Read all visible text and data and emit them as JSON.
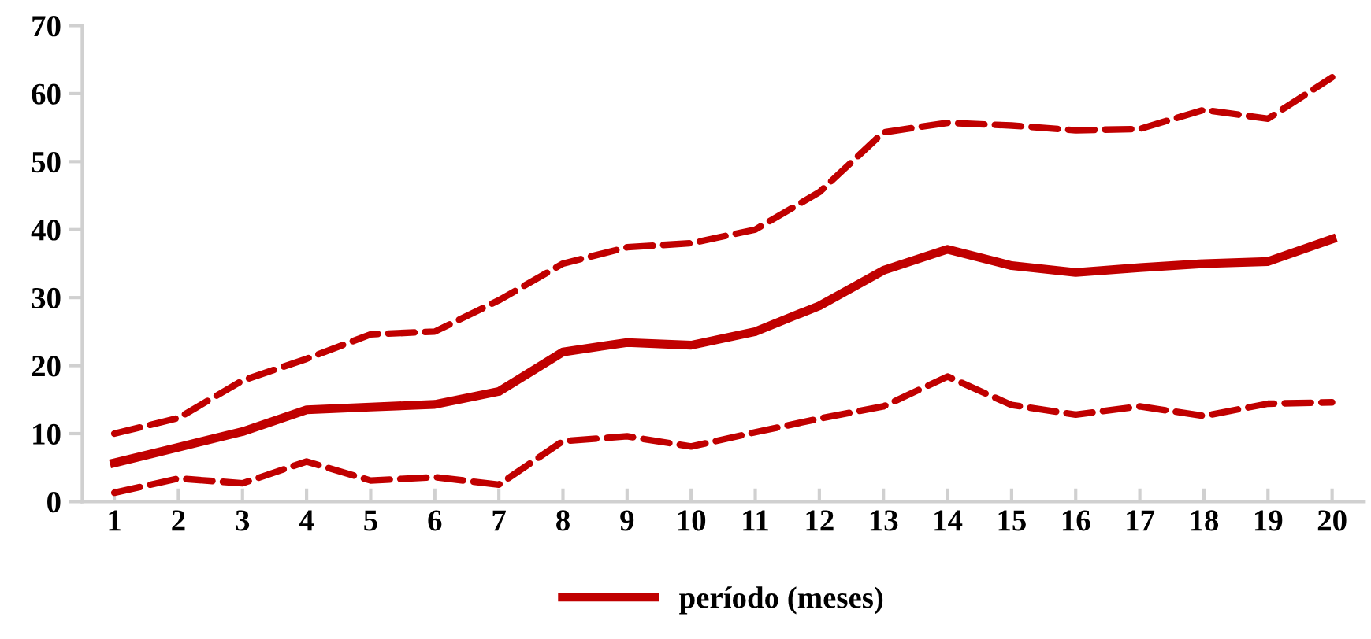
{
  "chart_data": {
    "type": "line",
    "categories": [
      "1",
      "2",
      "3",
      "4",
      "5",
      "6",
      "7",
      "8",
      "9",
      "10",
      "11",
      "12",
      "13",
      "14",
      "15",
      "16",
      "17",
      "18",
      "19",
      "20"
    ],
    "ylim": [
      0,
      70
    ],
    "yticks": [
      0,
      10,
      20,
      30,
      40,
      50,
      60,
      70
    ],
    "grid": false,
    "legend": "bottom",
    "marker": "none",
    "series": [
      {
        "name": "período (meses)",
        "color": "#c00000",
        "line_style": "solid",
        "values": [
          5.7,
          8,
          10.3,
          13.5,
          13.9,
          14.3,
          16.2,
          22,
          23.4,
          23,
          25,
          28.8,
          34,
          37.1,
          34.7,
          33.7,
          34.4,
          35,
          35.3,
          38.6
        ]
      },
      {
        "color": "#c00000",
        "line_style": "dashed",
        "values": [
          10,
          12.3,
          17.8,
          21,
          24.6,
          25,
          29.6,
          35,
          37.4,
          38,
          40,
          45.5,
          54.3,
          55.7,
          55.3,
          54.6,
          54.8,
          57.6,
          56.3,
          62.4
        ]
      },
      {
        "color": "#c00000",
        "line_style": "dashed",
        "values": [
          1.3,
          3.4,
          2.7,
          5.9,
          3.1,
          3.6,
          2.5,
          8.9,
          9.6,
          8.1,
          10.2,
          12.2,
          14,
          18.4,
          14.2,
          12.8,
          14,
          12.6,
          14.4,
          14.6
        ]
      }
    ]
  }
}
